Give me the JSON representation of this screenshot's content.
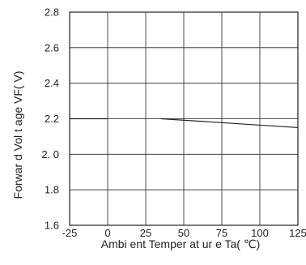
{
  "chart_data": {
    "type": "line",
    "title": "",
    "xlabel": "Ambi ent Temper at ur e Ta( ℃)",
    "ylabel": "Forwar d Vol t age VF( V)",
    "xlim": [
      -25,
      125
    ],
    "ylim": [
      1.6,
      2.8
    ],
    "xticks": [
      -25,
      0,
      25,
      50,
      75,
      100,
      125
    ],
    "yticks": [
      1.6,
      1.8,
      2.0,
      2.2,
      2.4,
      2.6,
      2.8
    ],
    "xtick_labels": [
      "-25",
      "0",
      "25",
      "50",
      "75",
      "100",
      "125"
    ],
    "ytick_labels": [
      "1.6",
      "1.8",
      "2. 0",
      "2.2",
      "2.4",
      "2.6",
      "2.8"
    ],
    "grid": true,
    "series": [
      {
        "x": [
          -25,
          0
        ],
        "y": [
          2.2,
          2.2
        ]
      },
      {
        "x": [
          35,
          125
        ],
        "y": [
          2.2,
          2.15
        ]
      }
    ],
    "line_color": "#222222",
    "grid_color": "#222222"
  }
}
